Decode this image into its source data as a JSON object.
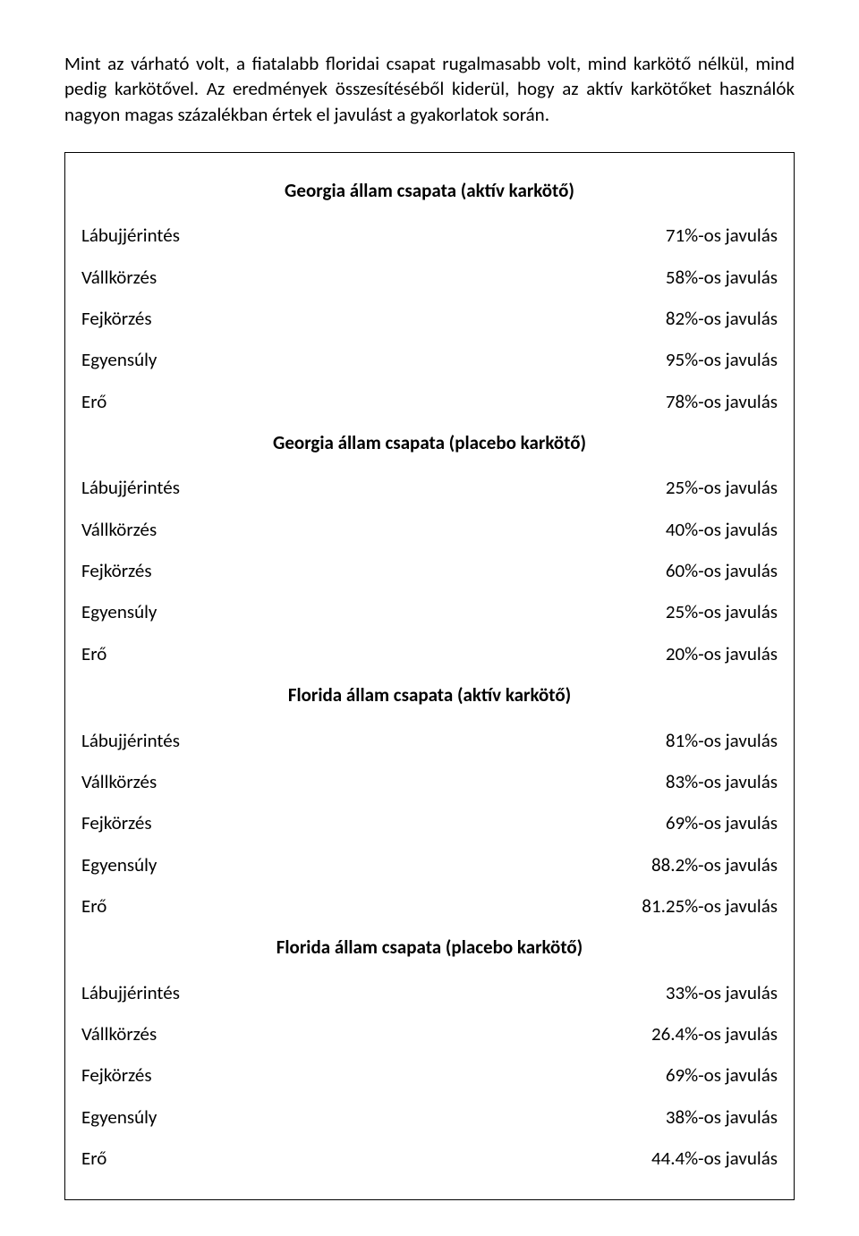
{
  "intro": "Mint az várható volt, a fiatalabb floridai csapat rugalmasabb volt, mind karkötő nélkül, mind pedig karkötővel. Az eredmények összesítéséből kiderül, hogy az aktív karkötőket használók nagyon magas százalékban értek el javulást a gyakorlatok során.",
  "sections": [
    {
      "title": "Georgia állam csapata (aktív karkötő)",
      "rows": [
        {
          "label": "Lábujjérintés",
          "value": "71%-os javulás"
        },
        {
          "label": "Vállkörzés",
          "value": "58%-os javulás"
        },
        {
          "label": "Fejkörzés",
          "value": "82%-os javulás"
        },
        {
          "label": "Egyensúly",
          "value": "95%-os javulás"
        },
        {
          "label": "Erő",
          "value": "78%-os javulás"
        }
      ]
    },
    {
      "title": "Georgia állam csapata (placebo karkötő)",
      "rows": [
        {
          "label": "Lábujjérintés",
          "value": "25%-os javulás"
        },
        {
          "label": "Vállkörzés",
          "value": "40%-os javulás"
        },
        {
          "label": "Fejkörzés",
          "value": "60%-os javulás"
        },
        {
          "label": "Egyensúly",
          "value": "25%-os javulás"
        },
        {
          "label": "Erő",
          "value": "20%-os javulás"
        }
      ]
    },
    {
      "title": "Florida állam csapata (aktív karkötő)",
      "rows": [
        {
          "label": "Lábujjérintés",
          "value": "81%-os javulás"
        },
        {
          "label": "Vállkörzés",
          "value": "83%-os javulás"
        },
        {
          "label": "Fejkörzés",
          "value": "69%-os javulás"
        },
        {
          "label": "Egyensúly",
          "value": "88.2%-os javulás"
        },
        {
          "label": "Erő",
          "value": "81.25%-os javulás"
        }
      ]
    },
    {
      "title": "Florida állam csapata (placebo karkötő)",
      "rows": [
        {
          "label": "Lábujjérintés",
          "value": "33%-os javulás"
        },
        {
          "label": "Vállkörzés",
          "value": "26.4%-os javulás"
        },
        {
          "label": "Fejkörzés",
          "value": "69%-os javulás"
        },
        {
          "label": "Egyensúly",
          "value": "38%-os javulás"
        },
        {
          "label": "Erő",
          "value": "44.4%-os javulás"
        }
      ]
    }
  ]
}
